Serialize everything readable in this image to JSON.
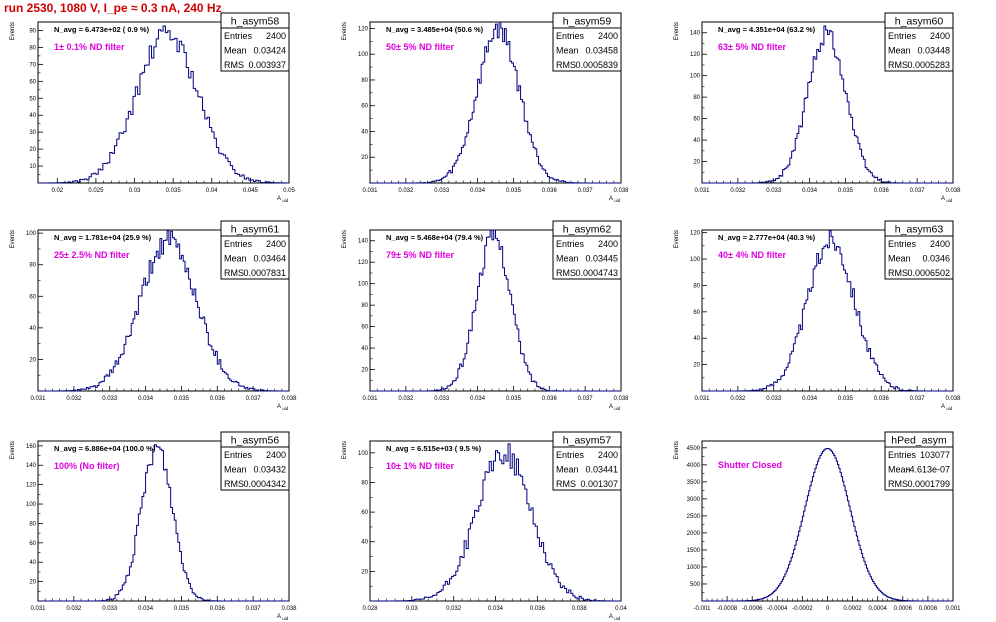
{
  "header": {
    "title": "run 2530,  1080 V, I_pe ≈ 0.3 nA, 240 Hz"
  },
  "colors": {
    "histogram": "#000080",
    "filter_label": "#e000e0",
    "title": "#d20000",
    "frame": "#000000"
  },
  "chart_data": [
    {
      "type": "histogram",
      "name": "h_asym58",
      "stats": {
        "entries": "2400",
        "mean": "0.03424",
        "rms": "0.003937"
      },
      "stats_labels": [
        "Entries",
        "Mean",
        "RMS"
      ],
      "annotation": "N_avg = 6.473e+02 ( 0.9 %)",
      "filter": "1± 0.1% ND filter",
      "xlabel": "A_uid",
      "ylabel": "Events",
      "xlim": [
        0.0175,
        0.05
      ],
      "ylim": [
        0,
        95
      ],
      "xticks": [
        "0.02",
        "0.025",
        "0.03",
        "0.035",
        "0.04",
        "0.045",
        "0.05"
      ],
      "xtick_values": [
        0.02,
        0.025,
        0.03,
        0.035,
        0.04,
        0.045,
        0.05
      ],
      "yticks": [
        10,
        20,
        30,
        40,
        50,
        60,
        70,
        80,
        90
      ],
      "dist": {
        "mean": 0.03424,
        "rms": 0.003937,
        "peak": 88,
        "noise": 6,
        "seed": 58,
        "binwidth": 0.0003
      }
    },
    {
      "type": "histogram",
      "name": "h_asym59",
      "stats": {
        "entries": "2400",
        "mean": "0.03458",
        "rms": "0.0005839"
      },
      "stats_labels": [
        "Entries",
        "Mean",
        "RMS"
      ],
      "annotation": "N_avg = 3.485e+04 (50.6 %)",
      "filter": "50± 5% ND filter",
      "xlabel": "A_uid",
      "ylabel": "Events",
      "xlim": [
        0.031,
        0.038
      ],
      "ylim": [
        0,
        125
      ],
      "xticks": [
        "0.031",
        "0.032",
        "0.033",
        "0.034",
        "0.035",
        "0.036",
        "0.037",
        "0.038"
      ],
      "xtick_values": [
        0.031,
        0.032,
        0.033,
        0.034,
        0.035,
        0.036,
        0.037,
        0.038
      ],
      "yticks": [
        20,
        40,
        60,
        80,
        100,
        120
      ],
      "dist": {
        "mean": 0.03458,
        "rms": 0.0005839,
        "peak": 120,
        "noise": 8,
        "seed": 59,
        "binwidth": 5e-05
      }
    },
    {
      "type": "histogram",
      "name": "h_asym60",
      "stats": {
        "entries": "2400",
        "mean": "0.03448",
        "rms": "0.0005283"
      },
      "stats_labels": [
        "Entries",
        "Mean",
        "RMS"
      ],
      "annotation": "N_avg = 4.351e+04 (63.2 %)",
      "filter": "63± 5% ND filter",
      "xlabel": "A_uid",
      "ylabel": "Events",
      "xlim": [
        0.031,
        0.038
      ],
      "ylim": [
        0,
        150
      ],
      "xticks": [
        "0.031",
        "0.032",
        "0.033",
        "0.034",
        "0.035",
        "0.036",
        "0.037",
        "0.038"
      ],
      "xtick_values": [
        0.031,
        0.032,
        0.033,
        0.034,
        0.035,
        0.036,
        0.037,
        0.038
      ],
      "yticks": [
        20,
        40,
        60,
        80,
        100,
        120,
        140
      ],
      "dist": {
        "mean": 0.03448,
        "rms": 0.0005283,
        "peak": 140,
        "noise": 9,
        "seed": 60,
        "binwidth": 5e-05
      }
    },
    {
      "type": "histogram",
      "name": "h_asym61",
      "stats": {
        "entries": "2400",
        "mean": "0.03464",
        "rms": "0.0007831"
      },
      "stats_labels": [
        "Entries",
        "Mean",
        "RMS"
      ],
      "annotation": "N_avg = 1.781e+04 (25.9 %)",
      "filter": "25± 2.5% ND filter",
      "xlabel": "A_uid",
      "ylabel": "Events",
      "xlim": [
        0.031,
        0.038
      ],
      "ylim": [
        0,
        102
      ],
      "xticks": [
        "0.031",
        "0.032",
        "0.033",
        "0.034",
        "0.035",
        "0.036",
        "0.037",
        "0.038"
      ],
      "xtick_values": [
        0.031,
        0.032,
        0.033,
        0.034,
        0.035,
        0.036,
        0.037,
        0.038
      ],
      "yticks": [
        20,
        40,
        60,
        80,
        100
      ],
      "dist": {
        "mean": 0.03464,
        "rms": 0.0007831,
        "peak": 95,
        "noise": 7,
        "seed": 61,
        "binwidth": 5e-05
      }
    },
    {
      "type": "histogram",
      "name": "h_asym62",
      "stats": {
        "entries": "2400",
        "mean": "0.03445",
        "rms": "0.0004743"
      },
      "stats_labels": [
        "Entries",
        "Mean",
        "RMS"
      ],
      "annotation": "N_avg = 5.468e+04 (79.4 %)",
      "filter": "79± 5% ND filter",
      "xlabel": "A_uid",
      "ylabel": "Events",
      "xlim": [
        0.031,
        0.038
      ],
      "ylim": [
        0,
        150
      ],
      "xticks": [
        "0.031",
        "0.032",
        "0.033",
        "0.034",
        "0.035",
        "0.036",
        "0.037",
        "0.038"
      ],
      "xtick_values": [
        0.031,
        0.032,
        0.033,
        0.034,
        0.035,
        0.036,
        0.037,
        0.038
      ],
      "yticks": [
        20,
        40,
        60,
        80,
        100,
        120,
        140
      ],
      "dist": {
        "mean": 0.03445,
        "rms": 0.0004743,
        "peak": 145,
        "noise": 9,
        "seed": 62,
        "binwidth": 5e-05
      }
    },
    {
      "type": "histogram",
      "name": "h_asym63",
      "stats": {
        "entries": "2400",
        "mean": "0.0346",
        "rms": "0.0006502"
      },
      "stats_labels": [
        "Entries",
        "Mean",
        "RMS"
      ],
      "annotation": "N_avg = 2.777e+04 (40.3 %)",
      "filter": "40± 4% ND filter",
      "xlabel": "A_uid",
      "ylabel": "Events",
      "xlim": [
        0.031,
        0.038
      ],
      "ylim": [
        0,
        122
      ],
      "xticks": [
        "0.031",
        "0.032",
        "0.033",
        "0.034",
        "0.035",
        "0.036",
        "0.037",
        "0.038"
      ],
      "xtick_values": [
        0.031,
        0.032,
        0.033,
        0.034,
        0.035,
        0.036,
        0.037,
        0.038
      ],
      "yticks": [
        20,
        40,
        60,
        80,
        100,
        120
      ],
      "dist": {
        "mean": 0.0346,
        "rms": 0.0006502,
        "peak": 115,
        "noise": 8,
        "seed": 63,
        "binwidth": 5e-05
      }
    },
    {
      "type": "histogram",
      "name": "h_asym56",
      "stats": {
        "entries": "2400",
        "mean": "0.03432",
        "rms": "0.0004342"
      },
      "stats_labels": [
        "Entries",
        "Mean",
        "RMS"
      ],
      "annotation": "N_avg = 6.886e+04 (100.0 %)",
      "filter": "100% (No filter)",
      "xlabel": "A_uid",
      "ylabel": "Events",
      "xlim": [
        0.031,
        0.038
      ],
      "ylim": [
        0,
        165
      ],
      "xticks": [
        "0.031",
        "0.032",
        "0.033",
        "0.034",
        "0.035",
        "0.036",
        "0.037",
        "0.038"
      ],
      "xtick_values": [
        0.031,
        0.032,
        0.033,
        0.034,
        0.035,
        0.036,
        0.037,
        0.038
      ],
      "yticks": [
        20,
        40,
        60,
        80,
        100,
        120,
        140,
        160
      ],
      "dist": {
        "mean": 0.03432,
        "rms": 0.0004342,
        "peak": 158,
        "noise": 10,
        "seed": 56,
        "binwidth": 5e-05
      }
    },
    {
      "type": "histogram",
      "name": "h_asym57",
      "stats": {
        "entries": "2400",
        "mean": "0.03441",
        "rms": "0.001307"
      },
      "stats_labels": [
        "Entries",
        "Mean",
        "RMS"
      ],
      "annotation": "N_avg = 6.515e+03 ( 9.5 %)",
      "filter": "10± 1% ND filter",
      "xlabel": "A_uid",
      "ylabel": "Events",
      "xlim": [
        0.028,
        0.04
      ],
      "ylim": [
        0,
        108
      ],
      "xticks": [
        "0.028",
        "0.03",
        "0.032",
        "0.034",
        "0.036",
        "0.038",
        "0.04"
      ],
      "xtick_values": [
        0.028,
        0.03,
        0.032,
        0.034,
        0.036,
        0.038,
        0.04
      ],
      "yticks": [
        20,
        40,
        60,
        80,
        100
      ],
      "dist": {
        "mean": 0.03441,
        "rms": 0.001307,
        "peak": 100,
        "noise": 8,
        "seed": 57,
        "binwidth": 0.0001
      }
    },
    {
      "type": "histogram",
      "name": "hPed_asym",
      "stats": {
        "entries": "103077",
        "mean": "-4.613e-07",
        "rms": "0.0001799"
      },
      "stats_labels": [
        "Entries",
        "Mean",
        "RMS"
      ],
      "annotation": "",
      "filter": "Shutter Closed",
      "xlabel": "",
      "ylabel": "Events",
      "xlim": [
        -0.001,
        0.001
      ],
      "ylim": [
        0,
        4700
      ],
      "xticks": [
        "-0.001",
        "-0.0008",
        "-0.0006",
        "-0.0004",
        "-0.0002",
        "0",
        "0.0002",
        "0.0004",
        "0.0006",
        "0.0008",
        "0.001"
      ],
      "xtick_values": [
        -0.001,
        -0.0008,
        -0.0006,
        -0.0004,
        -0.0002,
        0,
        0.0002,
        0.0004,
        0.0006,
        0.0008,
        0.001
      ],
      "yticks": [
        500,
        1000,
        1500,
        2000,
        2500,
        3000,
        3500,
        4000,
        4500
      ],
      "dist": {
        "mean": 0.0,
        "rms": 0.0001799,
        "peak": 4480,
        "noise": 0,
        "seed": 1,
        "binwidth": 1e-05
      }
    }
  ]
}
